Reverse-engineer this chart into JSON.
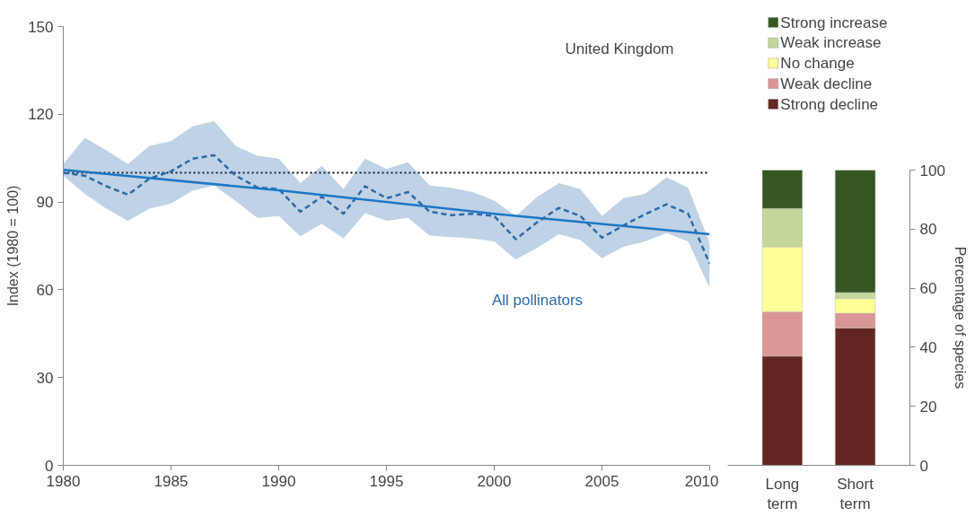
{
  "chart_data": [
    {
      "type": "line",
      "ylabel": "Index (1980 = 100)",
      "annotations": [
        "United Kingdom"
      ],
      "xlim": [
        1980,
        2010
      ],
      "xticks": [
        1980,
        1985,
        1990,
        1995,
        2000,
        2005,
        2010
      ],
      "ylim": [
        0,
        150
      ],
      "yticks": [
        0,
        30,
        60,
        90,
        120,
        150
      ],
      "grid": false,
      "legend": false,
      "marker": "none",
      "ref_lines": [
        {
          "axis": "y",
          "value": 100,
          "color": "#000000",
          "line_style": "dotted"
        }
      ],
      "series": [
        {
          "name": "All pollinators",
          "color": "#2e6aa8",
          "line_style": "dashed",
          "x": [
            1980,
            1981,
            1982,
            1983,
            1984,
            1985,
            1986,
            1987,
            1988,
            1989,
            1990,
            1991,
            1992,
            1993,
            1994,
            1995,
            1996,
            1997,
            1998,
            1999,
            2000,
            2001,
            2002,
            2003,
            2004,
            2005,
            2006,
            2007,
            2008,
            2009,
            2010
          ],
          "values": [
            100,
            99,
            95.4,
            92.5,
            98,
            100.5,
            104.8,
            106,
            99,
            95,
            94.4,
            86.7,
            91.8,
            86,
            95.4,
            91.3,
            93.4,
            86.7,
            85.5,
            86,
            85.2,
            77.3,
            83.1,
            88,
            85.2,
            77.8,
            82,
            85.8,
            89.2,
            86,
            68.9
          ],
          "lower": [
            99,
            92.8,
            87.7,
            83.6,
            87.7,
            89.5,
            93.9,
            95.6,
            90.3,
            84.6,
            85.2,
            78.3,
            82.6,
            77.5,
            86.2,
            83.6,
            84.6,
            78.5,
            78,
            77.5,
            76.5,
            70.3,
            74.4,
            79,
            77,
            70.8,
            74.7,
            76.5,
            79.4,
            76.5,
            60.5
          ],
          "upper": [
            103,
            112,
            107.7,
            103,
            109.2,
            110.8,
            115.9,
            117.6,
            109.2,
            105.8,
            104.8,
            96.5,
            102.4,
            94.4,
            104.8,
            101.3,
            103.6,
            95.6,
            94.9,
            93.4,
            90.5,
            85.2,
            91.8,
            96.5,
            94.4,
            85.2,
            91.3,
            92.8,
            98.5,
            94.9,
            76
          ]
        },
        {
          "color": "#1f77c4",
          "line_style": "solid",
          "x": [
            1980,
            1990,
            2000,
            2010
          ],
          "values": [
            101,
            94,
            86,
            79
          ]
        }
      ]
    },
    {
      "type": "bar",
      "stacked": true,
      "categories": [
        "Long term",
        "Short term"
      ],
      "y2label": "Percentage of species",
      "y2lim": [
        0,
        100
      ],
      "y2ticks": [
        0,
        20,
        40,
        60,
        80,
        100
      ],
      "grid": false,
      "legend": "top",
      "series": [
        {
          "name": "Strong decline",
          "color": "#632523",
          "axis": "y2",
          "values": [
            37,
            46.5
          ]
        },
        {
          "name": "Weak decline",
          "color": "#da9694",
          "axis": "y2",
          "values": [
            15,
            5
          ]
        },
        {
          "name": "No change",
          "color": "#ffff99",
          "axis": "y2",
          "values": [
            22,
            5
          ]
        },
        {
          "name": "Weak increase",
          "color": "#c4d79b",
          "axis": "y2",
          "values": [
            13,
            2
          ]
        },
        {
          "name": "Strong increase",
          "color": "#375623",
          "axis": "y2",
          "values": [
            13,
            41.5
          ]
        }
      ]
    }
  ]
}
